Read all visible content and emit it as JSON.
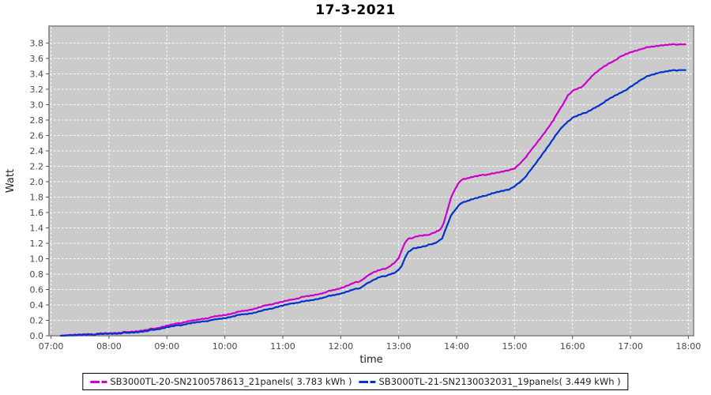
{
  "title": "17-3-2021",
  "chart_data": {
    "type": "line",
    "title": "17-3-2021",
    "xlabel": "time",
    "ylabel": "Watt",
    "x_tick_labels": [
      "07:00",
      "08:00",
      "09:00",
      "10:00",
      "11:00",
      "12:00",
      "13:00",
      "14:00",
      "15:00",
      "16:00",
      "17:00",
      "18:00"
    ],
    "x_tick_hours": [
      7,
      8,
      9,
      10,
      11,
      12,
      13,
      14,
      15,
      16,
      17,
      18
    ],
    "y_ticks": [
      0.0,
      0.2,
      0.4,
      0.6,
      0.8,
      1.0,
      1.2,
      1.4,
      1.6,
      1.8,
      2.0,
      2.2,
      2.4,
      2.6,
      2.8,
      3.0,
      3.2,
      3.4,
      3.6,
      3.8
    ],
    "xlim_hours": [
      6.965,
      18.09
    ],
    "ylim": [
      0,
      4.02
    ],
    "grid": true,
    "legend_position": "bottom",
    "colors": {
      "plot_background": "#cbcbcb",
      "grid": "#ffffff",
      "plot_border": "#808080",
      "tick": "#555555",
      "series1": "#cc00cc",
      "series2": "#0033cc"
    },
    "series": [
      {
        "name": "SB3000TL-20-SN2100578613_21panels( 3.783 kWh )",
        "color": "#cc00cc",
        "total_kwh": 3.783,
        "points": [
          [
            7.17,
            0
          ],
          [
            7.33,
            0.01
          ],
          [
            7.5,
            0.012
          ],
          [
            7.67,
            0.018
          ],
          [
            7.83,
            0.025
          ],
          [
            8.0,
            0.032
          ],
          [
            8.17,
            0.04
          ],
          [
            8.33,
            0.05
          ],
          [
            8.5,
            0.062
          ],
          [
            8.67,
            0.08
          ],
          [
            8.83,
            0.1
          ],
          [
            9.0,
            0.13
          ],
          [
            9.17,
            0.155
          ],
          [
            9.33,
            0.18
          ],
          [
            9.5,
            0.2
          ],
          [
            9.67,
            0.225
          ],
          [
            9.83,
            0.25
          ],
          [
            10.0,
            0.27
          ],
          [
            10.17,
            0.3
          ],
          [
            10.33,
            0.325
          ],
          [
            10.5,
            0.35
          ],
          [
            10.67,
            0.385
          ],
          [
            10.83,
            0.415
          ],
          [
            11.0,
            0.44
          ],
          [
            11.17,
            0.47
          ],
          [
            11.33,
            0.5
          ],
          [
            11.5,
            0.52
          ],
          [
            11.67,
            0.55
          ],
          [
            11.83,
            0.585
          ],
          [
            12.0,
            0.62
          ],
          [
            12.17,
            0.67
          ],
          [
            12.33,
            0.71
          ],
          [
            12.42,
            0.75
          ],
          [
            12.5,
            0.8
          ],
          [
            12.58,
            0.83
          ],
          [
            12.67,
            0.85
          ],
          [
            12.83,
            0.89
          ],
          [
            12.92,
            0.94
          ],
          [
            13.0,
            1.0
          ],
          [
            13.05,
            1.1
          ],
          [
            13.1,
            1.2
          ],
          [
            13.17,
            1.26
          ],
          [
            13.33,
            1.29
          ],
          [
            13.5,
            1.31
          ],
          [
            13.63,
            1.34
          ],
          [
            13.72,
            1.38
          ],
          [
            13.78,
            1.47
          ],
          [
            13.83,
            1.6
          ],
          [
            13.9,
            1.78
          ],
          [
            13.97,
            1.9
          ],
          [
            14.03,
            1.98
          ],
          [
            14.1,
            2.03
          ],
          [
            14.25,
            2.06
          ],
          [
            14.42,
            2.08
          ],
          [
            14.58,
            2.1
          ],
          [
            14.75,
            2.12
          ],
          [
            14.92,
            2.15
          ],
          [
            15.0,
            2.17
          ],
          [
            15.08,
            2.22
          ],
          [
            15.17,
            2.3
          ],
          [
            15.33,
            2.45
          ],
          [
            15.5,
            2.62
          ],
          [
            15.67,
            2.8
          ],
          [
            15.83,
            3.0
          ],
          [
            15.92,
            3.12
          ],
          [
            16.0,
            3.18
          ],
          [
            16.08,
            3.21
          ],
          [
            16.17,
            3.23
          ],
          [
            16.33,
            3.37
          ],
          [
            16.5,
            3.47
          ],
          [
            16.67,
            3.55
          ],
          [
            16.83,
            3.62
          ],
          [
            17.0,
            3.68
          ],
          [
            17.17,
            3.72
          ],
          [
            17.33,
            3.75
          ],
          [
            17.5,
            3.77
          ],
          [
            17.67,
            3.78
          ],
          [
            17.83,
            3.783
          ],
          [
            17.95,
            3.783
          ]
        ]
      },
      {
        "name": "SB3000TL-21-SN2130032031_19panels( 3.449 kWh )",
        "color": "#0033cc",
        "total_kwh": 3.449,
        "points": [
          [
            7.17,
            0
          ],
          [
            7.33,
            0.005
          ],
          [
            7.5,
            0.008
          ],
          [
            7.67,
            0.012
          ],
          [
            7.83,
            0.018
          ],
          [
            8.0,
            0.025
          ],
          [
            8.17,
            0.032
          ],
          [
            8.33,
            0.04
          ],
          [
            8.5,
            0.05
          ],
          [
            8.67,
            0.065
          ],
          [
            8.83,
            0.085
          ],
          [
            9.0,
            0.11
          ],
          [
            9.17,
            0.13
          ],
          [
            9.33,
            0.15
          ],
          [
            9.5,
            0.17
          ],
          [
            9.67,
            0.19
          ],
          [
            9.83,
            0.21
          ],
          [
            10.0,
            0.23
          ],
          [
            10.17,
            0.26
          ],
          [
            10.33,
            0.28
          ],
          [
            10.5,
            0.3
          ],
          [
            10.67,
            0.33
          ],
          [
            10.83,
            0.36
          ],
          [
            11.0,
            0.39
          ],
          [
            11.17,
            0.42
          ],
          [
            11.33,
            0.44
          ],
          [
            11.5,
            0.46
          ],
          [
            11.67,
            0.49
          ],
          [
            11.83,
            0.52
          ],
          [
            12.0,
            0.55
          ],
          [
            12.17,
            0.59
          ],
          [
            12.33,
            0.62
          ],
          [
            12.42,
            0.66
          ],
          [
            12.5,
            0.7
          ],
          [
            12.58,
            0.73
          ],
          [
            12.67,
            0.76
          ],
          [
            12.83,
            0.79
          ],
          [
            12.92,
            0.81
          ],
          [
            13.0,
            0.85
          ],
          [
            13.05,
            0.9
          ],
          [
            13.1,
            1.0
          ],
          [
            13.17,
            1.09
          ],
          [
            13.25,
            1.13
          ],
          [
            13.42,
            1.16
          ],
          [
            13.58,
            1.19
          ],
          [
            13.67,
            1.22
          ],
          [
            13.75,
            1.27
          ],
          [
            13.83,
            1.42
          ],
          [
            13.9,
            1.55
          ],
          [
            13.97,
            1.63
          ],
          [
            14.03,
            1.69
          ],
          [
            14.1,
            1.73
          ],
          [
            14.25,
            1.77
          ],
          [
            14.42,
            1.8
          ],
          [
            14.58,
            1.84
          ],
          [
            14.75,
            1.87
          ],
          [
            14.92,
            1.9
          ],
          [
            15.0,
            1.94
          ],
          [
            15.08,
            1.98
          ],
          [
            15.17,
            2.05
          ],
          [
            15.33,
            2.2
          ],
          [
            15.5,
            2.38
          ],
          [
            15.67,
            2.56
          ],
          [
            15.83,
            2.72
          ],
          [
            15.92,
            2.78
          ],
          [
            16.0,
            2.83
          ],
          [
            16.08,
            2.86
          ],
          [
            16.17,
            2.88
          ],
          [
            16.25,
            2.9
          ],
          [
            16.42,
            2.97
          ],
          [
            16.58,
            3.05
          ],
          [
            16.75,
            3.12
          ],
          [
            16.92,
            3.19
          ],
          [
            17.0,
            3.23
          ],
          [
            17.17,
            3.32
          ],
          [
            17.33,
            3.38
          ],
          [
            17.5,
            3.42
          ],
          [
            17.67,
            3.44
          ],
          [
            17.83,
            3.449
          ],
          [
            17.95,
            3.449
          ]
        ]
      }
    ]
  }
}
